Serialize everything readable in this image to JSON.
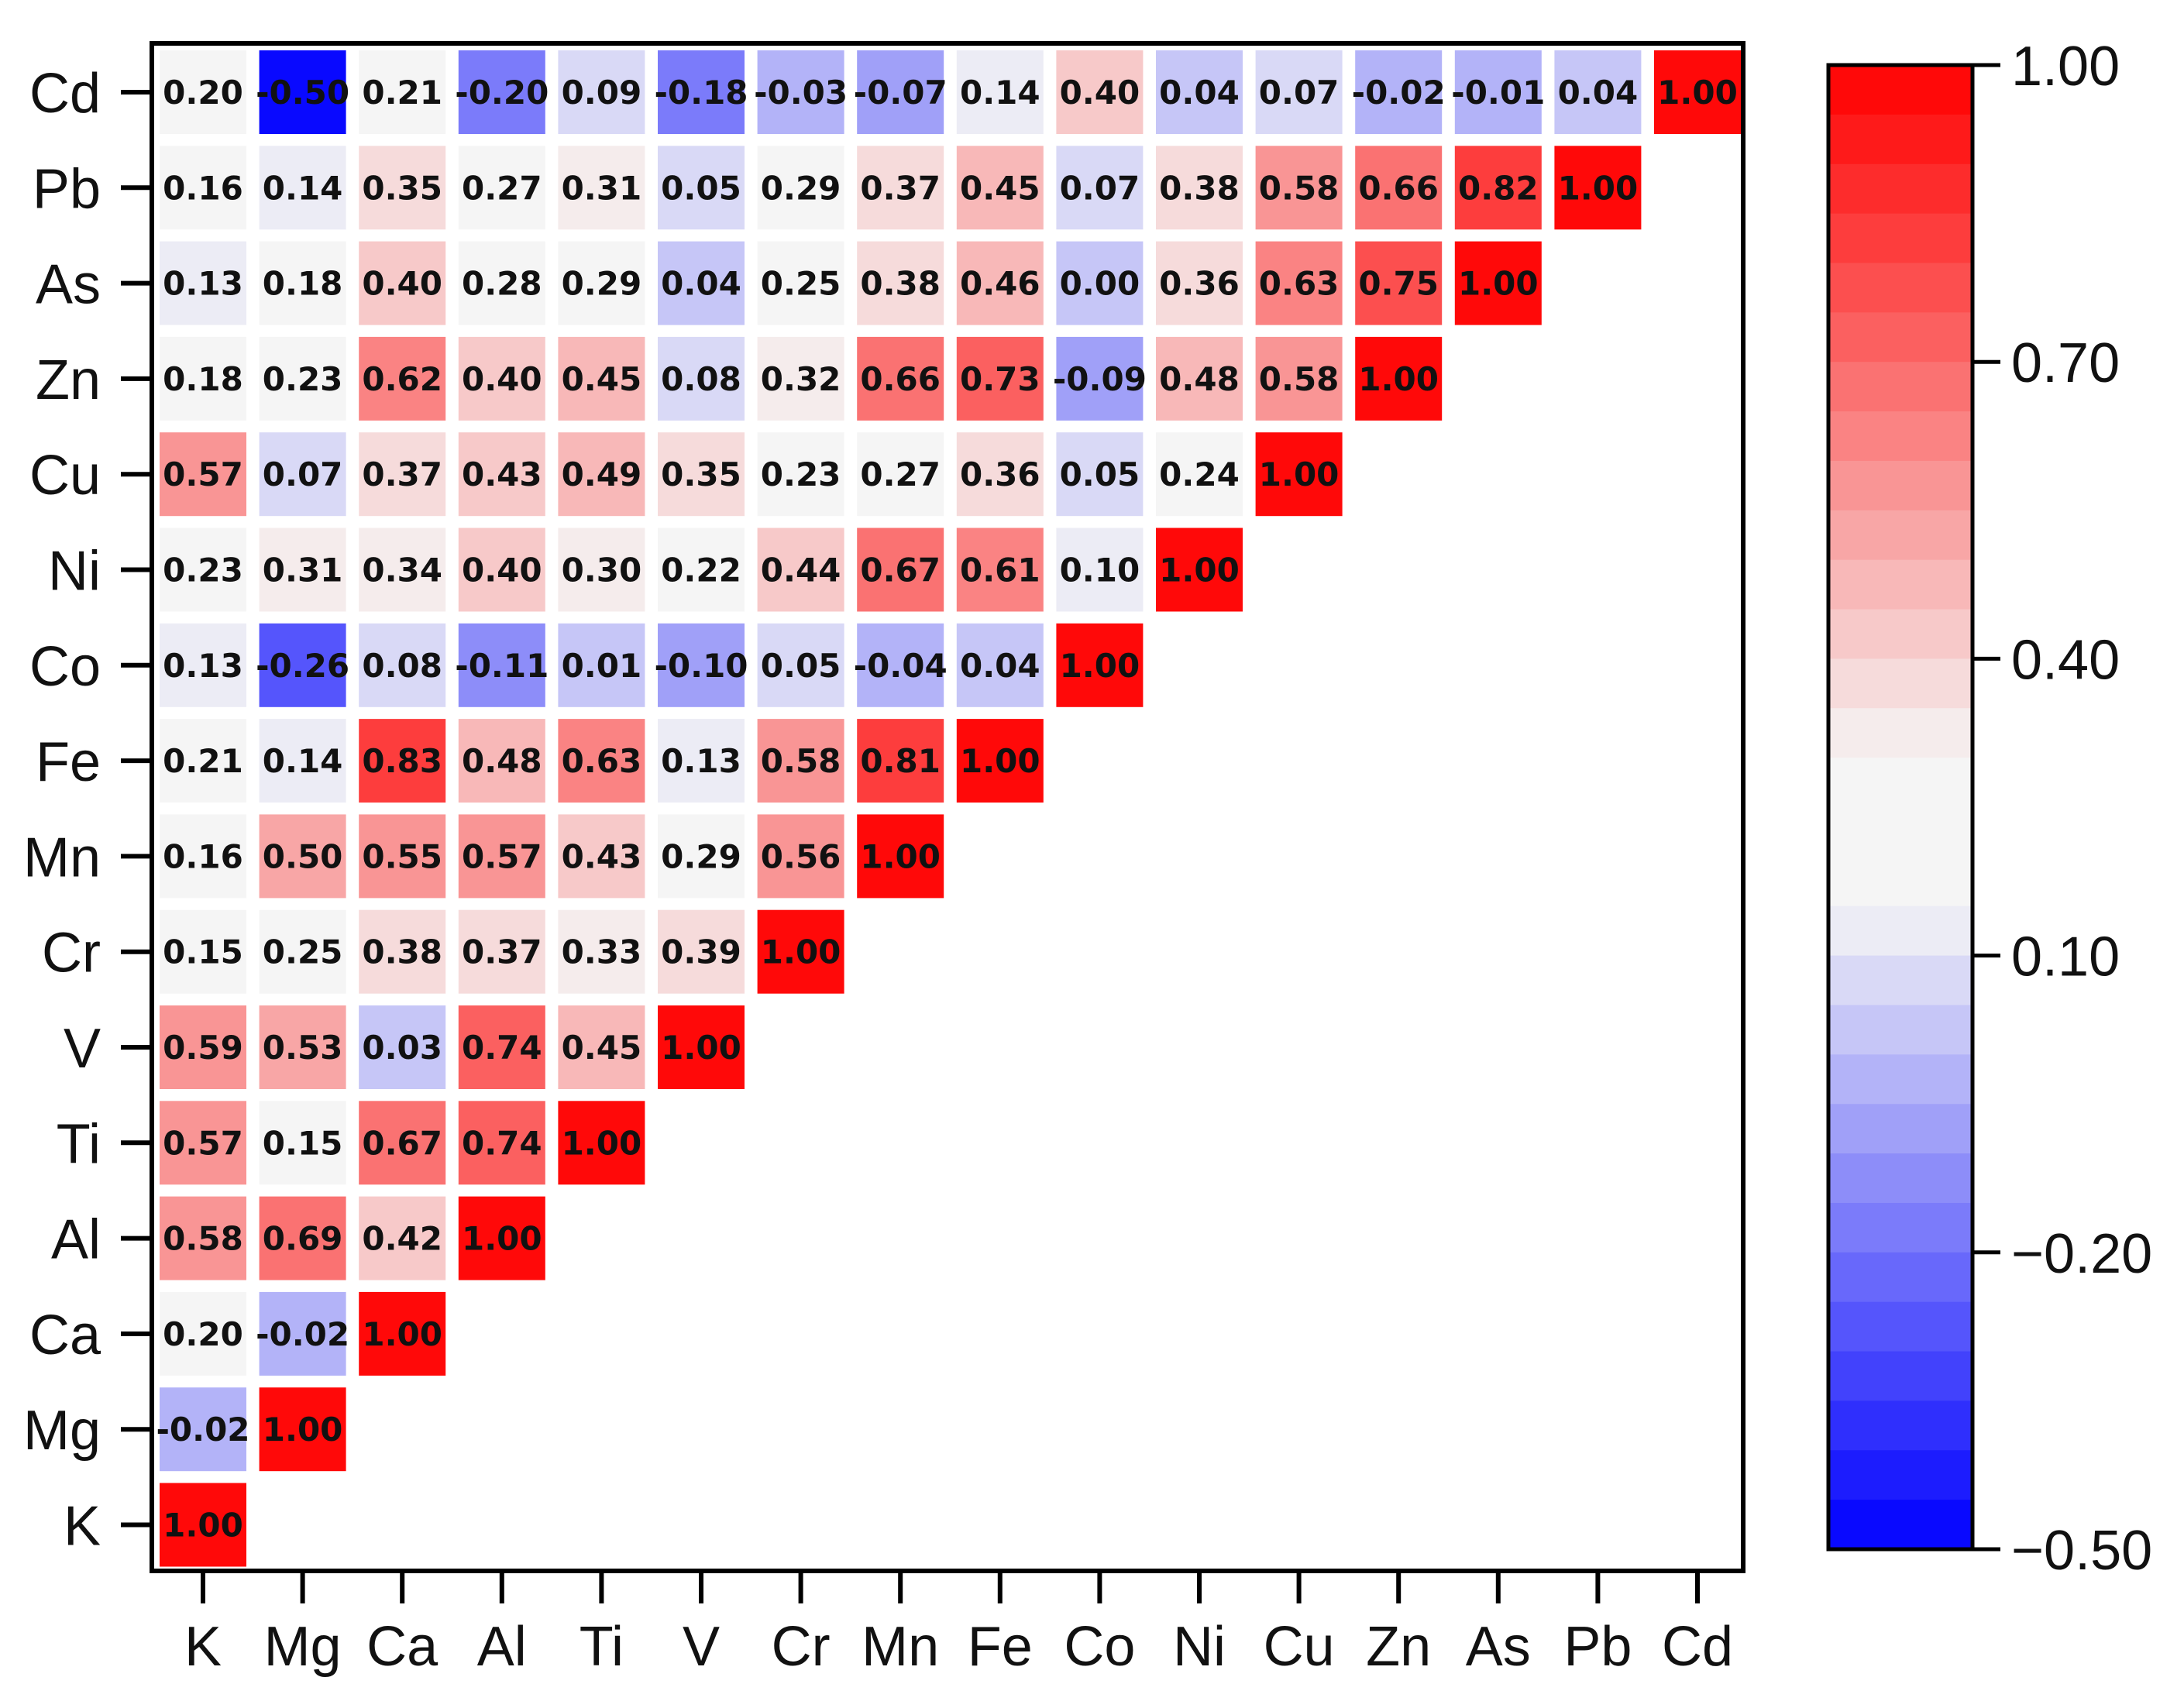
{
  "chart_data": {
    "type": "heatmap",
    "title": "",
    "xlabel": "",
    "ylabel": "",
    "x_categories": [
      "K",
      "Mg",
      "Ca",
      "Al",
      "Ti",
      "V",
      "Cr",
      "Mn",
      "Fe",
      "Co",
      "Ni",
      "Cu",
      "Zn",
      "As",
      "Pb",
      "Cd"
    ],
    "y_categories_top_to_bottom": [
      "Cd",
      "Pb",
      "As",
      "Zn",
      "Cu",
      "Ni",
      "Co",
      "Fe",
      "Mn",
      "Cr",
      "V",
      "Ti",
      "Al",
      "Ca",
      "Mg",
      "K"
    ],
    "matrix_shape": "lower-left triangle",
    "values": [
      [
        "0.20",
        "-0.50",
        "0.21",
        "-0.20",
        "0.09",
        "-0.18",
        "-0.03",
        "-0.07",
        "0.14",
        "0.40",
        "0.04",
        "0.07",
        "-0.02",
        "-0.01",
        "0.04",
        "1.00"
      ],
      [
        "0.16",
        "0.14",
        "0.35",
        "0.27",
        "0.31",
        "0.05",
        "0.29",
        "0.37",
        "0.45",
        "0.07",
        "0.38",
        "0.58",
        "0.66",
        "0.82",
        "1.00"
      ],
      [
        "0.13",
        "0.18",
        "0.40",
        "0.28",
        "0.29",
        "0.04",
        "0.25",
        "0.38",
        "0.46",
        "0.00",
        "0.36",
        "0.63",
        "0.75",
        "1.00"
      ],
      [
        "0.18",
        "0.23",
        "0.62",
        "0.40",
        "0.45",
        "0.08",
        "0.32",
        "0.66",
        "0.73",
        "-0.09",
        "0.48",
        "0.58",
        "1.00"
      ],
      [
        "0.57",
        "0.07",
        "0.37",
        "0.43",
        "0.49",
        "0.35",
        "0.23",
        "0.27",
        "0.36",
        "0.05",
        "0.24",
        "1.00"
      ],
      [
        "0.23",
        "0.31",
        "0.34",
        "0.40",
        "0.30",
        "0.22",
        "0.44",
        "0.67",
        "0.61",
        "0.10",
        "1.00"
      ],
      [
        "0.13",
        "-0.26",
        "0.08",
        "-0.11",
        "0.01",
        "-0.10",
        "0.05",
        "-0.04",
        "0.04",
        "1.00"
      ],
      [
        "0.21",
        "0.14",
        "0.83",
        "0.48",
        "0.63",
        "0.13",
        "0.58",
        "0.81",
        "1.00"
      ],
      [
        "0.16",
        "0.50",
        "0.55",
        "0.57",
        "0.43",
        "0.29",
        "0.56",
        "1.00"
      ],
      [
        "0.15",
        "0.25",
        "0.38",
        "0.37",
        "0.33",
        "0.39",
        "1.00"
      ],
      [
        "0.59",
        "0.53",
        "0.03",
        "0.74",
        "0.45",
        "1.00"
      ],
      [
        "0.57",
        "0.15",
        "0.67",
        "0.74",
        "1.00"
      ],
      [
        "0.58",
        "0.69",
        "0.42",
        "1.00"
      ],
      [
        "0.20",
        "-0.02",
        "1.00"
      ],
      [
        "-0.02",
        "1.00"
      ],
      [
        "1.00"
      ]
    ],
    "colorbar": {
      "range": [
        -0.5,
        1.0
      ],
      "tick_labels": [
        "1.00",
        "0.70",
        "0.40",
        "0.10",
        "−0.20",
        "−0.50"
      ],
      "tick_values": [
        1.0,
        0.7,
        0.4,
        0.1,
        -0.2,
        -0.5
      ],
      "steps": 30,
      "colors": {
        "low": "#0000ff",
        "mid": "#f5f5f5",
        "high": "#ff0000",
        "mid_band": [
          0.15,
          0.3
        ]
      }
    },
    "grid": false,
    "legend": "right (colorbar)"
  }
}
